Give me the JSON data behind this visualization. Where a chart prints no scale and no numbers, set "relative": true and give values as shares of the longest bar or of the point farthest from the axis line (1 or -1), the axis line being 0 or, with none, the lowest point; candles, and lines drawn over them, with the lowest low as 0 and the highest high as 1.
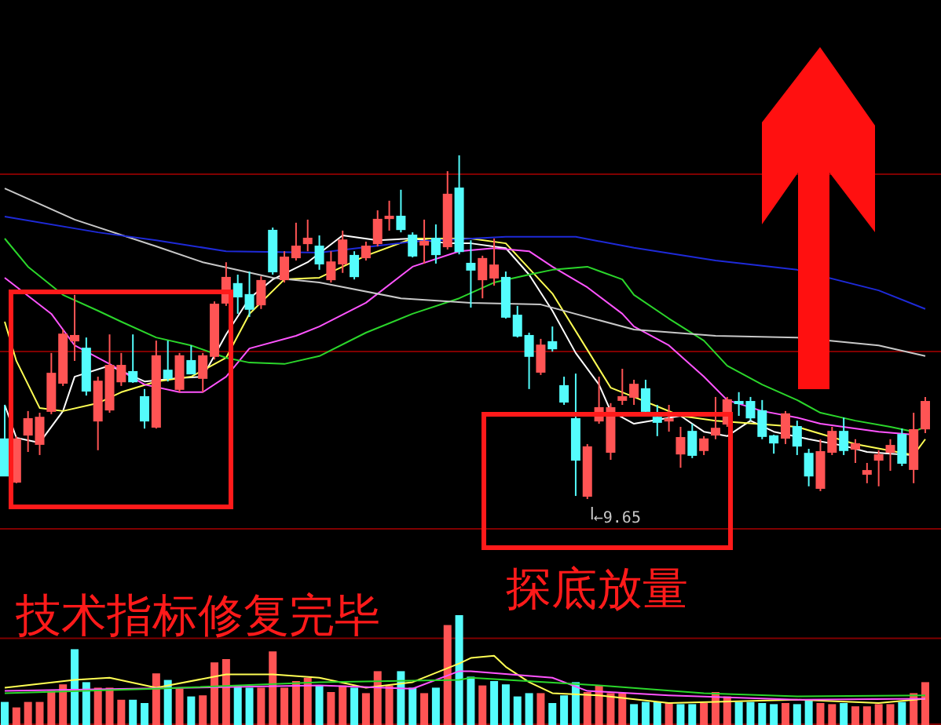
{
  "chart_data": [
    {
      "type": "candlestick",
      "relative": true,
      "categories": [
        null,
        null,
        null,
        null,
        null,
        null,
        null,
        null,
        null,
        null,
        null,
        null,
        null,
        null,
        null,
        null,
        null,
        null,
        null,
        null,
        null,
        null,
        null,
        null,
        null,
        null,
        null,
        null,
        null,
        null,
        null,
        null,
        null,
        null,
        null,
        null,
        null,
        null,
        null,
        null,
        null,
        null,
        null,
        null,
        null,
        null,
        null,
        null,
        null,
        null,
        null,
        null,
        null,
        null,
        null,
        null,
        null,
        null,
        null,
        null,
        null,
        null,
        null,
        null,
        null,
        null,
        null,
        null,
        null,
        null,
        null,
        null,
        null,
        null,
        null,
        null,
        null,
        null,
        null,
        null
      ],
      "ohlc": [
        [
          0.174,
          0.274,
          0.068,
          0.068
        ],
        [
          0.05,
          0.183,
          0.046,
          0.174
        ],
        [
          0.187,
          0.256,
          0.137,
          0.233
        ],
        [
          0.16,
          0.251,
          0.128,
          0.237
        ],
        [
          0.256,
          0.425,
          0.247,
          0.365
        ],
        [
          0.338,
          0.493,
          0.329,
          0.479
        ],
        [
          0.461,
          0.594,
          0.402,
          0.475
        ],
        [
          0.438,
          0.47,
          0.301,
          0.315
        ],
        [
          0.228,
          0.356,
          0.142,
          0.342
        ],
        [
          0.26,
          0.479,
          0.251,
          0.388
        ],
        [
          0.342,
          0.425,
          0.329,
          0.388
        ],
        [
          0.37,
          0.479,
          0.338,
          0.342
        ],
        [
          0.297,
          0.32,
          0.205,
          0.228
        ],
        [
          0.21,
          0.461,
          0.205,
          0.416
        ],
        [
          0.374,
          0.461,
          0.342,
          0.352
        ],
        [
          0.32,
          0.425,
          0.311,
          0.416
        ],
        [
          0.402,
          0.447,
          0.365,
          0.365
        ],
        [
          0.352,
          0.425,
          0.311,
          0.416
        ],
        [
          0.416,
          0.575,
          0.406,
          0.566
        ],
        [
          0.571,
          0.689,
          0.562,
          0.644
        ],
        [
          0.626,
          0.653,
          0.539,
          0.589
        ],
        [
          0.594,
          0.662,
          0.53,
          0.553
        ],
        [
          0.566,
          0.648,
          0.553,
          0.635
        ],
        [
          0.781,
          0.79,
          0.653,
          0.662
        ],
        [
          0.639,
          0.721,
          0.63,
          0.703
        ],
        [
          0.703,
          0.804,
          0.694,
          0.735
        ],
        [
          0.744,
          0.813,
          0.721,
          0.758
        ],
        [
          0.735,
          0.767,
          0.667,
          0.685
        ],
        [
          0.639,
          0.721,
          0.63,
          0.689
        ],
        [
          0.685,
          0.781,
          0.658,
          0.753
        ],
        [
          0.708,
          0.721,
          0.639,
          0.648
        ],
        [
          0.703,
          0.749,
          0.694,
          0.735
        ],
        [
          0.744,
          0.84,
          0.735,
          0.813
        ],
        [
          0.817,
          0.868,
          0.781,
          0.822
        ],
        [
          0.822,
          0.9,
          0.776,
          0.785
        ],
        [
          0.767,
          0.776,
          0.703,
          0.708
        ],
        [
          0.74,
          0.813,
          0.685,
          0.749
        ],
        [
          0.758,
          0.799,
          0.685,
          0.712
        ],
        [
          0.735,
          0.954,
          0.726,
          0.886
        ],
        [
          0.904,
          1,
          0.712,
          0.721
        ],
        [
          0.685,
          0.753,
          0.557,
          0.667
        ],
        [
          0.639,
          0.708,
          0.584,
          0.699
        ],
        [
          0.644,
          0.758,
          0.621,
          0.68
        ],
        [
          0.644,
          0.662,
          0.525,
          0.53
        ],
        [
          0.534,
          0.562,
          0.47,
          0.475
        ],
        [
          0.475,
          0.484,
          0.32,
          0.416
        ],
        [
          0.37,
          0.466,
          0.361,
          0.447
        ],
        [
          0.457,
          0.502,
          0.429,
          0.438
        ],
        [
          0.329,
          0.356,
          0.274,
          0.283
        ],
        [
          0.233,
          0.365,
          0.009,
          0.114
        ],
        [
          0.009,
          0.16,
          0,
          0.151
        ],
        [
          0.228,
          0.356,
          0.219,
          0.265
        ],
        [
          0.137,
          0.279,
          0.114,
          0.265
        ],
        [
          0.288,
          0.379,
          0.274,
          0.297
        ],
        [
          0.297,
          0.347,
          0.274,
          0.333
        ],
        [
          0.32,
          0.347,
          0.247,
          0.256
        ],
        [
          0.237,
          0.274,
          0.183,
          0.224
        ],
        [
          0.228,
          0.274,
          0.196,
          0.233
        ],
        [
          0.132,
          0.21,
          0.091,
          0.178
        ],
        [
          0.196,
          0.219,
          0.119,
          0.128
        ],
        [
          0.142,
          0.183,
          0.128,
          0.174
        ],
        [
          0.187,
          0.297,
          0.174,
          0.205
        ],
        [
          0.219,
          0.297,
          0.21,
          0.288
        ],
        [
          0.283,
          0.311,
          0.242,
          0.279
        ],
        [
          0.283,
          0.297,
          0.228,
          0.237
        ],
        [
          0.256,
          0.288,
          0.174,
          0.183
        ],
        [
          0.183,
          0.187,
          0.132,
          0.164
        ],
        [
          0.178,
          0.256,
          0.16,
          0.247
        ],
        [
          0.21,
          0.228,
          0.128,
          0.155
        ],
        [
          0.132,
          0.146,
          0.037,
          0.068
        ],
        [
          0.032,
          0.174,
          0.023,
          0.137
        ],
        [
          0.137,
          0.21,
          0.128,
          0.196
        ],
        [
          0.196,
          0.237,
          0.128,
          0.142
        ],
        [
          0.146,
          0.174,
          0.105,
          0.16
        ],
        [
          0.073,
          0.105,
          0.046,
          0.082
        ],
        [
          0.114,
          0.142,
          0.037,
          0.128
        ],
        [
          0.137,
          0.174,
          0.082,
          0.155
        ],
        [
          0.187,
          0.205,
          0.096,
          0.105
        ],
        [
          0.087,
          0.251,
          0.046,
          0.201
        ],
        [
          0.205,
          0.297,
          0.192,
          0.283
        ]
      ],
      "colors": [
        "#54fcfc",
        "#ff5454",
        "#ff5454",
        "#ff5454",
        "#ff5454",
        "#ff5454",
        "#ff5454",
        "#54fcfc",
        "#ff5454",
        "#ff5454",
        "#ff5454",
        "#54fcfc",
        "#54fcfc",
        "#ff5454",
        "#54fcfc",
        "#ff5454",
        "#54fcfc",
        "#ff5454",
        "#ff5454",
        "#ff5454",
        "#54fcfc",
        "#54fcfc",
        "#ff5454",
        "#54fcfc",
        "#ff5454",
        "#ff5454",
        "#ff5454",
        "#54fcfc",
        "#ff5454",
        "#ff5454",
        "#54fcfc",
        "#ff5454",
        "#ff5454",
        "#ff5454",
        "#54fcfc",
        "#54fcfc",
        "#ff5454",
        "#54fcfc",
        "#ff5454",
        "#54fcfc",
        "#54fcfc",
        "#ff5454",
        "#ff5454",
        "#54fcfc",
        "#54fcfc",
        "#54fcfc",
        "#ff5454",
        "#54fcfc",
        "#54fcfc",
        "#54fcfc",
        "#ff5454",
        "#ff5454",
        "#ff5454",
        "#ff5454",
        "#ff5454",
        "#54fcfc",
        "#54fcfc",
        "#ff5454",
        "#ff5454",
        "#54fcfc",
        "#ff5454",
        "#ff5454",
        "#ff5454",
        "#54fcfc",
        "#54fcfc",
        "#54fcfc",
        "#54fcfc",
        "#ff5454",
        "#54fcfc",
        "#54fcfc",
        "#ff5454",
        "#ff5454",
        "#54fcfc",
        "#ff5454",
        "#ff5454",
        "#ff5454",
        "#ff5454",
        "#54fcfc",
        "#ff5454",
        "#ff5454"
      ],
      "series": [
        {
          "type": "line",
          "color": "#ffffff",
          "values": [
            0.274,
            0.178,
            null,
            0.164,
            null,
            0.256,
            0.356,
            null,
            null,
            0.388,
            null,
            null,
            0.342,
            null,
            null,
            0.352,
            null,
            0.356,
            null,
            0.479,
            null,
            0.584,
            null,
            0.639,
            null,
            null,
            0.689,
            null,
            null,
            0.767,
            null,
            null,
            0.753,
            null,
            null,
            0.758,
            null,
            null,
            0.744,
            null,
            0.744,
            null,
            null,
            0.73,
            null,
            0.653,
            null,
            0.548,
            null,
            0.425,
            null,
            0.333,
            0.256,
            null,
            0.219,
            null,
            null,
            null,
            0.242,
            null,
            0.196,
            null,
            0.183,
            null,
            0.228,
            null,
            0.196,
            null,
            null,
            0.174,
            null,
            null,
            0.155,
            null,
            0.137,
            null,
            0.132,
            null,
            0.128,
            null
          ]
        },
        {
          "type": "line",
          "color": "#ffff54",
          "values": [
            0.516,
            0.402,
            null,
            0.265,
            null,
            0.256,
            null,
            null,
            0.279,
            null,
            0.311,
            null,
            null,
            0.342,
            null,
            null,
            0.356,
            null,
            null,
            0.411,
            null,
            0.539,
            null,
            null,
            0.639,
            null,
            null,
            0.644,
            null,
            null,
            null,
            0.708,
            null,
            null,
            null,
            0.758,
            null,
            null,
            null,
            null,
            0.758,
            null,
            null,
            0.744,
            null,
            null,
            null,
            0.598,
            null,
            null,
            0.434,
            null,
            0.324,
            null,
            0.297,
            null,
            null,
            null,
            0.242,
            null,
            null,
            0.228,
            null,
            null,
            null,
            null,
            null,
            null,
            0.21,
            null,
            null,
            null,
            null,
            0.16,
            null,
            null,
            null,
            null,
            0.128,
            0.174
          ]
        },
        {
          "type": "line",
          "color": "#ff54ff",
          "values": [
            0.644,
            null,
            null,
            null,
            0.539,
            null,
            0.447,
            null,
            null,
            0.393,
            null,
            null,
            0.333,
            null,
            null,
            0.311,
            null,
            0.311,
            null,
            0.356,
            null,
            0.438,
            null,
            null,
            null,
            0.475,
            null,
            0.502,
            null,
            null,
            null,
            0.571,
            null,
            null,
            null,
            0.676,
            null,
            null,
            null,
            0.721,
            null,
            null,
            0.73,
            null,
            null,
            0.721,
            null,
            0.676,
            null,
            null,
            0.616,
            null,
            null,
            0.539,
            0.502,
            null,
            null,
            0.447,
            null,
            null,
            0.356,
            null,
            0.288,
            null,
            null,
            0.256,
            null,
            null,
            0.237,
            null,
            0.219,
            null,
            null,
            null,
            null,
            0.196,
            null,
            null,
            0.187,
            null
          ]
        },
        {
          "type": "line",
          "color": "#2bd62b",
          "values": [
            0.758,
            null,
            0.676,
            null,
            null,
            0.594,
            null,
            null,
            0.548,
            null,
            0.516,
            null,
            null,
            0.47,
            null,
            null,
            0.447,
            null,
            null,
            0.411,
            null,
            0.397,
            null,
            null,
            0.393,
            null,
            null,
            0.416,
            null,
            null,
            null,
            0.484,
            null,
            null,
            null,
            0.539,
            null,
            null,
            null,
            0.584,
            null,
            null,
            0.63,
            null,
            null,
            0.653,
            null,
            0.667,
            null,
            null,
            0.676,
            null,
            null,
            0.639,
            0.594,
            null,
            null,
            0.525,
            null,
            null,
            0.461,
            null,
            0.388,
            null,
            null,
            0.333,
            null,
            null,
            0.288,
            null,
            0.251,
            null,
            null,
            0.228,
            null,
            null,
            0.21,
            null,
            0.196,
            0.21
          ]
        },
        {
          "type": "line",
          "color": "#c8c8c8",
          "values": [
            0.904,
            null,
            null,
            null,
            null,
            null,
            0.813,
            null,
            null,
            null,
            null,
            null,
            null,
            0.735,
            null,
            null,
            null,
            0.689,
            null,
            null,
            null,
            null,
            null,
            0.644,
            null,
            null,
            null,
            0.63,
            null,
            null,
            null,
            null,
            null,
            null,
            0.584,
            null,
            null,
            null,
            null,
            null,
            0.571,
            null,
            null,
            null,
            null,
            null,
            0.566,
            null,
            null,
            null,
            null,
            null,
            null,
            null,
            0.493,
            null,
            null,
            null,
            null,
            null,
            null,
            0.475,
            null,
            null,
            null,
            null,
            null,
            null,
            0.47,
            null,
            null,
            null,
            null,
            null,
            null,
            0.447,
            null,
            null,
            null,
            0.416
          ]
        },
        {
          "type": "line",
          "color": "#1e2ad8",
          "values": [
            0.822,
            null,
            null,
            null,
            null,
            null,
            null,
            null,
            0.776,
            null,
            null,
            null,
            null,
            0.753,
            null,
            null,
            null,
            null,
            null,
            0.721,
            null,
            null,
            null,
            null,
            null,
            null,
            null,
            0.717,
            null,
            null,
            null,
            null,
            null,
            null,
            null,
            0.749,
            null,
            null,
            null,
            null,
            null,
            null,
            null,
            0.763,
            null,
            null,
            null,
            null,
            null,
            0.763,
            null,
            null,
            null,
            null,
            0.731,
            null,
            null,
            null,
            null,
            null,
            null,
            0.694,
            null,
            null,
            null,
            null,
            null,
            null,
            0.667,
            null,
            null,
            null,
            null,
            null,
            null,
            0.607,
            null,
            null,
            null,
            0.553
          ]
        }
      ],
      "ref_lines": [
        {
          "axis": "y",
          "value": 0.945,
          "color": "#800000"
        },
        {
          "axis": "y",
          "value": 0.429,
          "color": "#800000"
        },
        {
          "axis": "y",
          "value": -0.087,
          "color": "#800000"
        }
      ],
      "annotations": [
        "技术指标修复完毕",
        "探底放量",
        "←9.65"
      ]
    },
    {
      "type": "bar",
      "relative": true,
      "categories": [
        null,
        null,
        null,
        null,
        null,
        null,
        null,
        null,
        null,
        null,
        null,
        null,
        null,
        null,
        null,
        null,
        null,
        null,
        null,
        null,
        null,
        null,
        null,
        null,
        null,
        null,
        null,
        null,
        null,
        null,
        null,
        null,
        null,
        null,
        null,
        null,
        null,
        null,
        null,
        null,
        null,
        null,
        null,
        null,
        null,
        null,
        null,
        null,
        null,
        null,
        null,
        null,
        null,
        null,
        null,
        null,
        null,
        null,
        null,
        null,
        null,
        null,
        null,
        null,
        null,
        null,
        null,
        null,
        null,
        null,
        null,
        null,
        null,
        null,
        null,
        null,
        null,
        null,
        null,
        null
      ],
      "values": [
        0.21,
        0.16,
        0.21,
        0.21,
        0.31,
        0.37,
        0.69,
        0.39,
        0.34,
        0.34,
        0.23,
        0.23,
        0.2,
        0.47,
        0.41,
        0.33,
        0.26,
        0.27,
        0.57,
        0.6,
        0.36,
        0.34,
        0.34,
        0.67,
        0.34,
        0.4,
        0.43,
        0.36,
        0.3,
        0.36,
        0.34,
        0.29,
        0.49,
        0.36,
        0.49,
        0.34,
        0.29,
        0.34,
        0.91,
        1,
        0.44,
        0.36,
        0.4,
        0.37,
        0.26,
        0.29,
        0.29,
        0.2,
        0.27,
        0.39,
        0.3,
        0.36,
        0.29,
        0.29,
        0.19,
        0.21,
        0.21,
        0.2,
        0.19,
        0.19,
        0.2,
        0.3,
        0.26,
        0.21,
        0.21,
        0.2,
        0.19,
        0.2,
        0.19,
        0.23,
        0.2,
        0.19,
        0.2,
        0.17,
        0.17,
        0.19,
        0.19,
        0.21,
        0.29,
        0.39
      ],
      "colors": [
        "#54fcfc",
        "#ff5454",
        "#ff5454",
        "#ff5454",
        "#ff5454",
        "#ff5454",
        "#54fcfc",
        "#54fcfc",
        "#ff5454",
        "#ff5454",
        "#ff5454",
        "#54fcfc",
        "#54fcfc",
        "#ff5454",
        "#54fcfc",
        "#ff5454",
        "#54fcfc",
        "#ff5454",
        "#ff5454",
        "#ff5454",
        "#54fcfc",
        "#54fcfc",
        "#ff5454",
        "#ff5454",
        "#ff5454",
        "#ff5454",
        "#ff5454",
        "#54fcfc",
        "#ff5454",
        "#ff5454",
        "#54fcfc",
        "#ff5454",
        "#ff5454",
        "#ff5454",
        "#54fcfc",
        "#54fcfc",
        "#ff5454",
        "#54fcfc",
        "#ff5454",
        "#54fcfc",
        "#54fcfc",
        "#ff5454",
        "#54fcfc",
        "#54fcfc",
        "#54fcfc",
        "#54fcfc",
        "#ff5454",
        "#54fcfc",
        "#54fcfc",
        "#54fcfc",
        "#ff5454",
        "#ff5454",
        "#ff5454",
        "#ff5454",
        "#54fcfc",
        "#54fcfc",
        "#54fcfc",
        "#ff5454",
        "#54fcfc",
        "#54fcfc",
        "#ff5454",
        "#ff5454",
        "#ff5454",
        "#54fcfc",
        "#54fcfc",
        "#54fcfc",
        "#54fcfc",
        "#ff5454",
        "#54fcfc",
        "#54fcfc",
        "#ff5454",
        "#ff5454",
        "#54fcfc",
        "#ff5454",
        "#ff5454",
        "#ff5454",
        "#ff5454",
        "#54fcfc",
        "#ff5454",
        "#ff5454"
      ],
      "series": [
        {
          "type": "line",
          "color": "#ffff54",
          "values": [
            0.34,
            null,
            null,
            null,
            null,
            null,
            0.41,
            null,
            null,
            0.43,
            null,
            null,
            null,
            0.34,
            null,
            null,
            null,
            null,
            null,
            0.46,
            null,
            null,
            null,
            0.46,
            null,
            null,
            null,
            0.43,
            null,
            null,
            null,
            0.34,
            null,
            null,
            null,
            0.39,
            null,
            null,
            null,
            0.56,
            0.61,
            null,
            0.63,
            0.53,
            null,
            0.39,
            null,
            0.29,
            null,
            null,
            null,
            0.27,
            null,
            null,
            null,
            null,
            null,
            0.2,
            null,
            null,
            null,
            0.21,
            null,
            null,
            null,
            null,
            null,
            null,
            0.23,
            null,
            null,
            null,
            null,
            null,
            null,
            0.2,
            null,
            null,
            null,
            0.24
          ]
        },
        {
          "type": "line",
          "color": "#ff54ff",
          "values": [
            0.31,
            null,
            null,
            null,
            null,
            null,
            null,
            null,
            null,
            null,
            null,
            null,
            null,
            null,
            null,
            null,
            null,
            null,
            null,
            null,
            null,
            null,
            null,
            null,
            null,
            null,
            null,
            0.36,
            null,
            null,
            null,
            null,
            null,
            null,
            null,
            0.33,
            null,
            null,
            null,
            0.49,
            0.49,
            null,
            null,
            null,
            null,
            null,
            null,
            0.43,
            null,
            null,
            0.31,
            null,
            null,
            null,
            null,
            null,
            null,
            0.27,
            null,
            null,
            null,
            null,
            null,
            null,
            null,
            null,
            null,
            null,
            0.23,
            null,
            null,
            null,
            null,
            null,
            null,
            null,
            null,
            null,
            null,
            0.24
          ]
        },
        {
          "type": "line",
          "color": "#2bd62b",
          "values": [
            0.29,
            null,
            null,
            null,
            null,
            null,
            null,
            null,
            null,
            null,
            null,
            null,
            null,
            0.33,
            null,
            null,
            null,
            null,
            null,
            null,
            null,
            null,
            null,
            null,
            null,
            null,
            null,
            0.39,
            null,
            null,
            null,
            null,
            null,
            null,
            null,
            null,
            null,
            null,
            null,
            0.41,
            0.43,
            null,
            null,
            null,
            null,
            null,
            null,
            null,
            null,
            null,
            null,
            0.36,
            null,
            null,
            null,
            null,
            null,
            null,
            null,
            null,
            0.29,
            null,
            null,
            null,
            null,
            null,
            null,
            null,
            0.26,
            null,
            null,
            null,
            null,
            null,
            null,
            null,
            null,
            null,
            null,
            0.27
          ]
        }
      ],
      "ref_lines": [
        {
          "axis": "y",
          "value": 0.79,
          "color": "#800000"
        }
      ]
    }
  ]
}
